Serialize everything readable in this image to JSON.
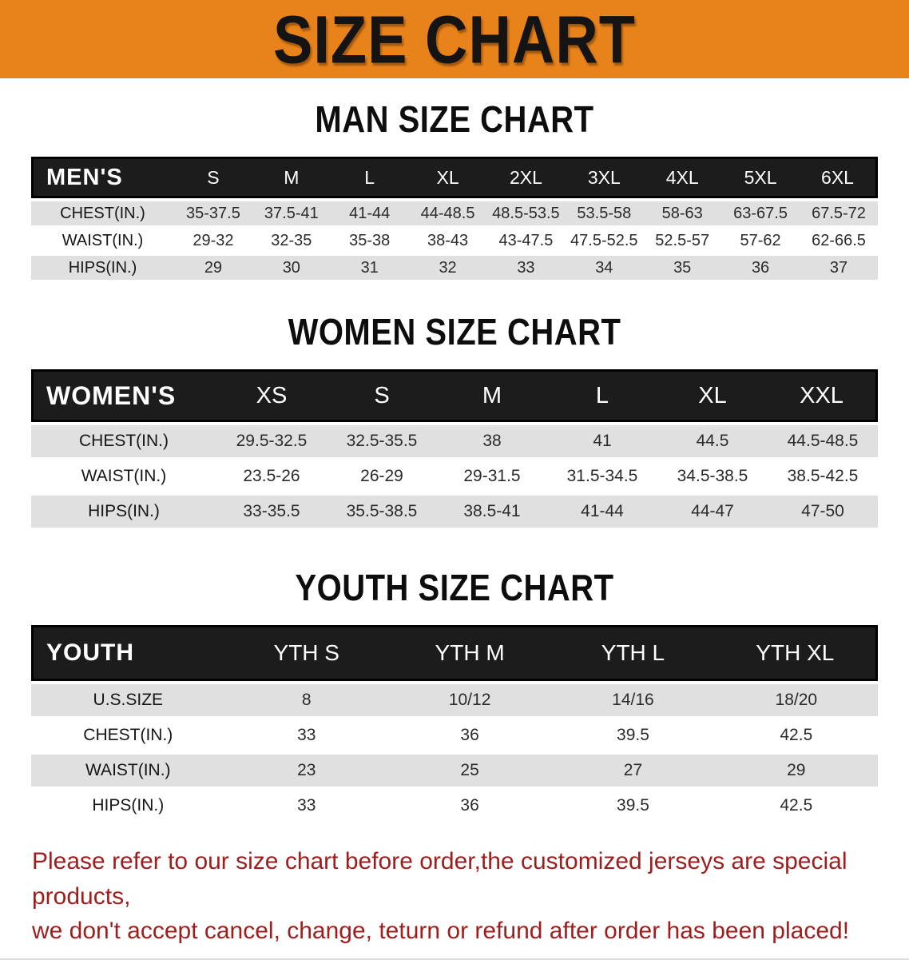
{
  "banner": {
    "title": "SIZE CHART"
  },
  "colors": {
    "banner_bg": "#E8821B",
    "header_bar": "#1C1C1C",
    "row_stripe": "#E0E0E0",
    "notice_red": "#9E1E1E"
  },
  "sections": [
    {
      "heading": "MAN SIZE CHART",
      "table": {
        "header_label": "MEN'S",
        "columns": [
          "S",
          "M",
          "L",
          "XL",
          "2XL",
          "3XL",
          "4XL",
          "5XL",
          "6XL"
        ],
        "rows": [
          {
            "label": "CHEST(IN.)",
            "values": [
              "35-37.5",
              "37.5-41",
              "41-44",
              "44-48.5",
              "48.5-53.5",
              "53.5-58",
              "58-63",
              "63-67.5",
              "67.5-72"
            ]
          },
          {
            "label": "WAIST(IN.)",
            "values": [
              "29-32",
              "32-35",
              "35-38",
              "38-43",
              "43-47.5",
              "47.5-52.5",
              "52.5-57",
              "57-62",
              "62-66.5"
            ]
          },
          {
            "label": "HIPS(IN.)",
            "values": [
              "29",
              "30",
              "31",
              "32",
              "33",
              "34",
              "35",
              "36",
              "37"
            ]
          }
        ]
      }
    },
    {
      "heading": "WOMEN SIZE CHART",
      "table": {
        "header_label": "WOMEN'S",
        "columns": [
          "XS",
          "S",
          "M",
          "L",
          "XL",
          "XXL"
        ],
        "rows": [
          {
            "label": "CHEST(IN.)",
            "values": [
              "29.5-32.5",
              "32.5-35.5",
              "38",
              "41",
              "44.5",
              "44.5-48.5"
            ]
          },
          {
            "label": "WAIST(IN.)",
            "values": [
              "23.5-26",
              "26-29",
              "29-31.5",
              "31.5-34.5",
              "34.5-38.5",
              "38.5-42.5"
            ]
          },
          {
            "label": "HIPS(IN.)",
            "values": [
              "33-35.5",
              "35.5-38.5",
              "38.5-41",
              "41-44",
              "44-47",
              "47-50"
            ]
          }
        ]
      }
    },
    {
      "heading": "YOUTH SIZE CHART",
      "table": {
        "header_label": "YOUTH",
        "columns": [
          "YTH S",
          "YTH M",
          "YTH L",
          "YTH XL"
        ],
        "rows": [
          {
            "label": "U.S.SIZE",
            "values": [
              "8",
              "10/12",
              "14/16",
              "18/20"
            ]
          },
          {
            "label": "CHEST(IN.)",
            "values": [
              "33",
              "36",
              "39.5",
              "42.5"
            ]
          },
          {
            "label": "WAIST(IN.)",
            "values": [
              "23",
              "25",
              "27",
              "29"
            ]
          },
          {
            "label": "HIPS(IN.)",
            "values": [
              "33",
              "36",
              "39.5",
              "42.5"
            ]
          }
        ]
      }
    }
  ],
  "notice": {
    "line1": "Please refer to our size chart before order,the customized jerseys are special products,",
    "line2": "we don't accept cancel, change, teturn or refund after order has been placed!"
  }
}
